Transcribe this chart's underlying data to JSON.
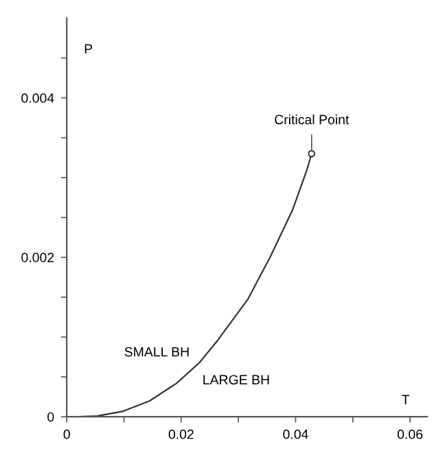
{
  "chart_data": {
    "type": "line",
    "xlabel": "T",
    "ylabel": "P",
    "series": [
      {
        "color": "#333333",
        "marker": "none",
        "x": [
          0.002,
          0.0053,
          0.0099,
          0.0145,
          0.0192,
          0.0232,
          0.0264,
          0.0317,
          0.0356,
          0.0395,
          0.0419,
          0.0428
        ],
        "values": [
          0,
          1e-05,
          7e-05,
          0.0002,
          0.00042,
          0.00068,
          0.00096,
          0.00148,
          0.00201,
          0.0026,
          0.00308,
          0.0033
        ]
      },
      {
        "type": "scatter",
        "color": "#333333",
        "marker": "circle",
        "x": [
          0.0428
        ],
        "values": [
          0.0033
        ]
      }
    ],
    "annotations": [
      {
        "text": "Critical Point",
        "x": 0.0428,
        "y": 0.0033
      },
      "SMALL BH",
      "LARGE BH"
    ],
    "xlim": [
      0,
      0.063
    ],
    "ylim": [
      0,
      0.005
    ],
    "xticks": [
      0,
      {
        "value": 0.01,
        "label": null
      },
      0.02,
      {
        "value": 0.03,
        "label": null
      },
      0.04,
      {
        "value": 0.05,
        "label": null
      },
      0.06
    ],
    "yticks": [
      0,
      {
        "value": 0.0005,
        "label": null
      },
      {
        "value": 0.001,
        "label": null
      },
      {
        "value": 0.0015,
        "label": null
      },
      0.002,
      {
        "value": 0.0025,
        "label": null
      },
      {
        "value": 0.003,
        "label": null
      },
      {
        "value": 0.0035,
        "label": null
      },
      0.004,
      {
        "value": 0.0045,
        "label": null
      }
    ],
    "grid": false,
    "legend": false
  }
}
